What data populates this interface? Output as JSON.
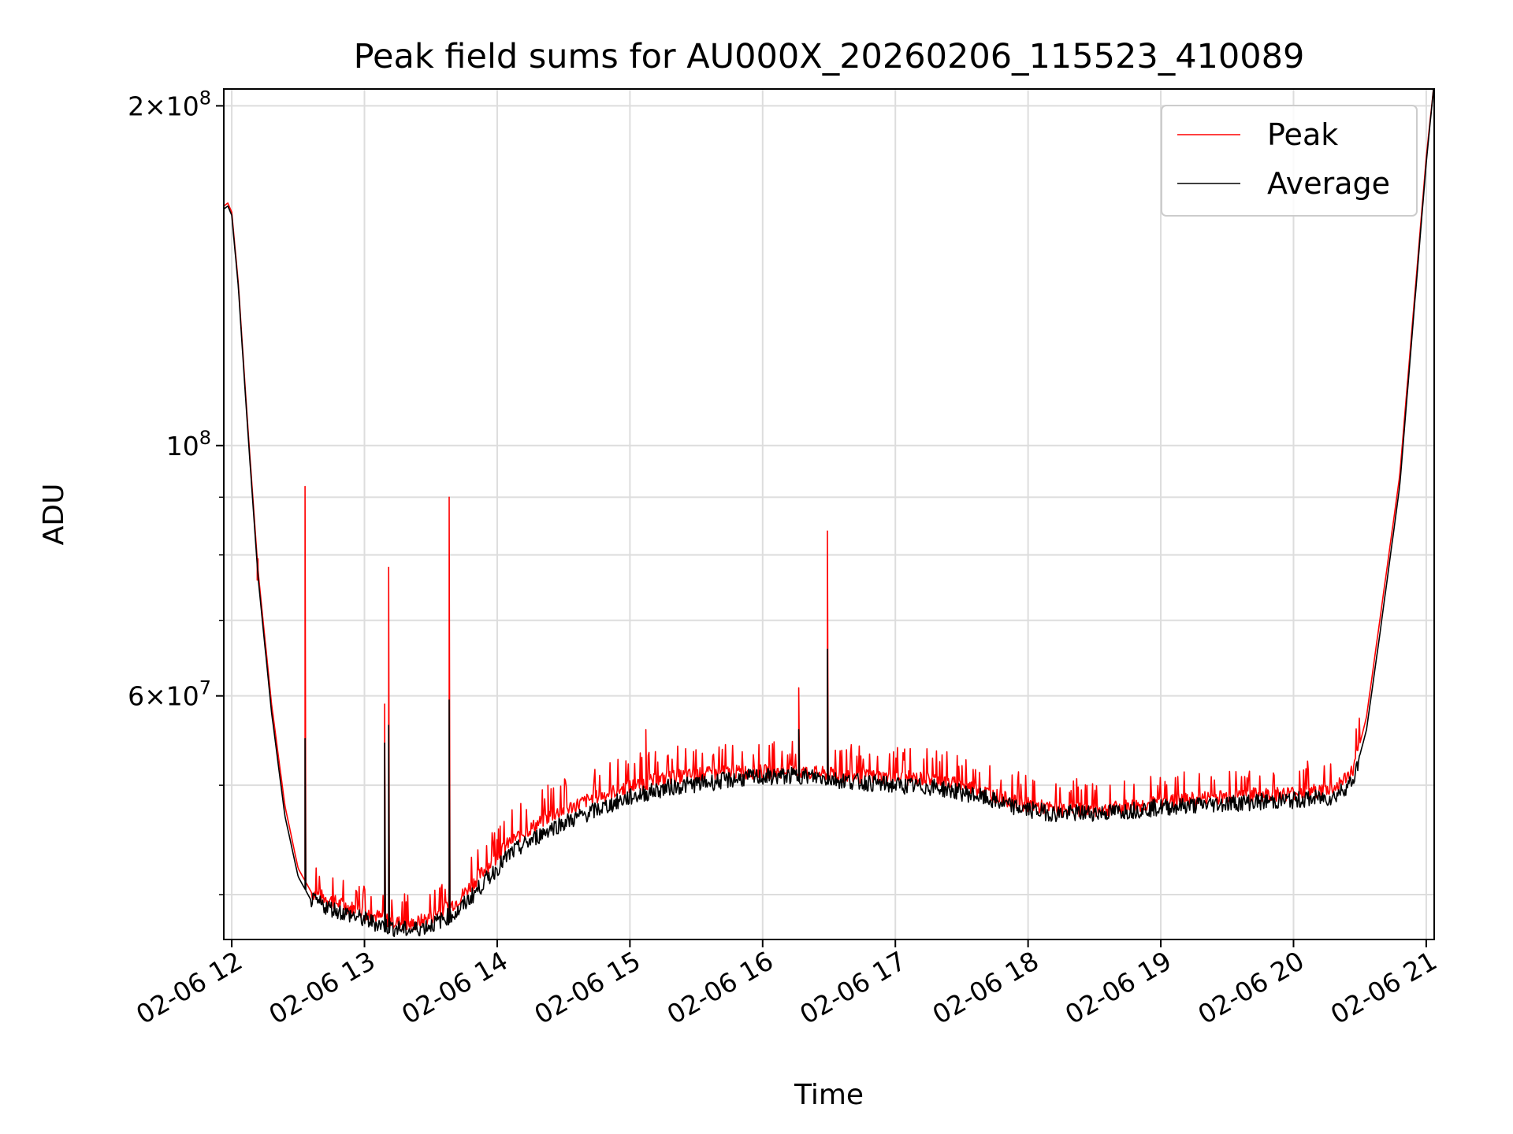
{
  "chart_data": {
    "type": "line",
    "title": "Peak field sums for AU000X_20260206_115523_410089",
    "xlabel": "Time",
    "ylabel": "ADU",
    "yscale": "log",
    "xlim_hours": [
      11.94,
      21.06
    ],
    "ylim": [
      36500000,
      207000000
    ],
    "grid": true,
    "legend_loc": "upper right",
    "x_ticks": [
      {
        "value": 12,
        "label": "02-06 12"
      },
      {
        "value": 13,
        "label": "02-06 13"
      },
      {
        "value": 14,
        "label": "02-06 14"
      },
      {
        "value": 15,
        "label": "02-06 15"
      },
      {
        "value": 16,
        "label": "02-06 16"
      },
      {
        "value": 17,
        "label": "02-06 17"
      },
      {
        "value": 18,
        "label": "02-06 18"
      },
      {
        "value": 19,
        "label": "02-06 19"
      },
      {
        "value": 20,
        "label": "02-06 20"
      },
      {
        "value": 21,
        "label": "02-06 21"
      }
    ],
    "y_major_ticks": [
      {
        "value": 60000000,
        "mant": "6",
        "exp": "7"
      },
      {
        "value": 100000000,
        "mant": "",
        "exp": "8"
      },
      {
        "value": 200000000,
        "mant": "2",
        "exp": "8"
      }
    ],
    "y_minor_ticks": [
      40000000,
      50000000,
      70000000,
      80000000,
      90000000
    ],
    "series": [
      {
        "name": "Average",
        "color": "#000000",
        "baseline": [
          [
            11.94,
            162000000
          ],
          [
            11.97,
            163000000
          ],
          [
            12.0,
            160000000
          ],
          [
            12.05,
            138000000
          ],
          [
            12.1,
            112000000
          ],
          [
            12.15,
            92000000
          ],
          [
            12.2,
            76000000
          ],
          [
            12.3,
            58000000
          ],
          [
            12.4,
            47000000
          ],
          [
            12.5,
            41500000
          ],
          [
            12.6,
            39500000
          ],
          [
            12.8,
            38700000
          ],
          [
            13.0,
            38000000
          ],
          [
            13.2,
            37400000
          ],
          [
            13.35,
            37200000
          ],
          [
            13.5,
            37600000
          ],
          [
            13.7,
            38600000
          ],
          [
            13.9,
            41000000
          ],
          [
            14.1,
            43500000
          ],
          [
            14.4,
            45800000
          ],
          [
            14.7,
            47300000
          ],
          [
            15.0,
            48800000
          ],
          [
            15.3,
            49800000
          ],
          [
            15.6,
            50300000
          ],
          [
            15.9,
            50800000
          ],
          [
            16.3,
            51000000
          ],
          [
            16.6,
            50500000
          ],
          [
            17.0,
            50000000
          ],
          [
            17.3,
            49800000
          ],
          [
            17.6,
            49000000
          ],
          [
            17.9,
            47800000
          ],
          [
            18.2,
            47200000
          ],
          [
            18.6,
            47300000
          ],
          [
            19.0,
            47800000
          ],
          [
            19.5,
            48200000
          ],
          [
            20.0,
            48500000
          ],
          [
            20.3,
            48800000
          ],
          [
            20.45,
            50500000
          ],
          [
            20.55,
            56000000
          ],
          [
            20.65,
            68000000
          ],
          [
            20.8,
            92000000
          ],
          [
            20.9,
            128000000
          ],
          [
            21.0,
            178000000
          ],
          [
            21.06,
            210000000
          ]
        ],
        "spikes": [
          {
            "x": 12.55,
            "value": 55000000
          },
          {
            "x": 13.15,
            "value": 54500000
          },
          {
            "x": 13.18,
            "value": 56500000
          },
          {
            "x": 13.64,
            "value": 59500000
          },
          {
            "x": 16.27,
            "value": 56000000
          },
          {
            "x": 16.49,
            "value": 66000000
          }
        ]
      },
      {
        "name": "Peak",
        "color": "#ff0000",
        "baseline": [
          [
            11.94,
            163000000
          ],
          [
            11.97,
            164000000
          ],
          [
            12.0,
            161000000
          ],
          [
            12.05,
            139000000
          ],
          [
            12.1,
            113000000
          ],
          [
            12.15,
            93000000
          ],
          [
            12.2,
            77000000
          ],
          [
            12.3,
            59000000
          ],
          [
            12.4,
            48000000
          ],
          [
            12.5,
            42200000
          ],
          [
            12.6,
            40200000
          ],
          [
            12.8,
            39300000
          ],
          [
            13.0,
            38600000
          ],
          [
            13.2,
            37900000
          ],
          [
            13.35,
            37600000
          ],
          [
            13.5,
            38200000
          ],
          [
            13.7,
            39500000
          ],
          [
            13.9,
            42000000
          ],
          [
            14.1,
            44600000
          ],
          [
            14.4,
            47000000
          ],
          [
            14.7,
            48600000
          ],
          [
            15.0,
            49900000
          ],
          [
            15.3,
            50800000
          ],
          [
            15.6,
            51200000
          ],
          [
            15.9,
            51400000
          ],
          [
            16.3,
            51400000
          ],
          [
            16.6,
            51000000
          ],
          [
            17.0,
            50800000
          ],
          [
            17.3,
            50600000
          ],
          [
            17.6,
            49700000
          ],
          [
            17.9,
            48300000
          ],
          [
            18.2,
            47600000
          ],
          [
            18.6,
            47600000
          ],
          [
            19.0,
            48300000
          ],
          [
            19.5,
            48900000
          ],
          [
            20.0,
            49200000
          ],
          [
            20.3,
            49600000
          ],
          [
            20.45,
            51500000
          ],
          [
            20.55,
            57500000
          ],
          [
            20.65,
            70000000
          ],
          [
            20.8,
            94000000
          ],
          [
            20.9,
            130000000
          ],
          [
            21.0,
            180000000
          ],
          [
            21.06,
            210000000
          ]
        ],
        "spikes": [
          {
            "x": 12.19,
            "value": 76000000
          },
          {
            "x": 12.55,
            "value": 92000000
          },
          {
            "x": 13.15,
            "value": 59000000
          },
          {
            "x": 13.18,
            "value": 78000000
          },
          {
            "x": 13.64,
            "value": 90000000
          },
          {
            "x": 14.02,
            "value": 46000000
          },
          {
            "x": 14.38,
            "value": 50000000
          },
          {
            "x": 15.12,
            "value": 56000000
          },
          {
            "x": 16.27,
            "value": 61000000
          },
          {
            "x": 16.49,
            "value": 84000000
          }
        ]
      }
    ]
  }
}
